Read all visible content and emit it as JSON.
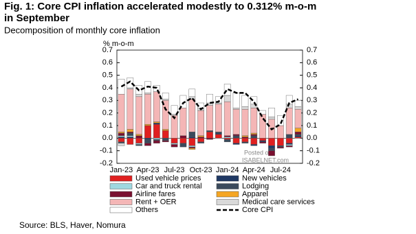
{
  "chart_data": {
    "type": "bar",
    "stacked": true,
    "title": "Fig. 1:  Core CPI inflation accelerated modestly to 0.312% m-o-m in September",
    "subtitle": "Decomposition of monthly core inflation",
    "y_label": "% m-o-m",
    "source": "Source: BLS, Haver, Nomura",
    "watermark": [
      "Posted on",
      "ISABELNET.com"
    ],
    "categories": [
      "Jan-23",
      null,
      null,
      "Apr-23",
      null,
      null,
      "Jul-23",
      null,
      null,
      "Oct-23",
      null,
      null,
      "Jan-24",
      null,
      null,
      "Apr-24",
      null,
      null,
      "Jul-24",
      null,
      null
    ],
    "ylim": [
      -0.2,
      0.7
    ],
    "yticks": [
      -0.2,
      -0.1,
      {
        "value": 0,
        "label": "0.0"
      },
      0.1,
      0.2,
      0.3,
      0.4,
      0.5,
      0.6,
      0.7
    ],
    "y2lim": [
      -0.2,
      0.7
    ],
    "legend": "bottom",
    "series": [
      {
        "name": "Used vehicle prices",
        "color": "#e02020",
        "values": [
          -0.03,
          -0.05,
          -0.04,
          0.1,
          0.11,
          0.06,
          -0.04,
          -0.04,
          -0.06,
          -0.03,
          0.05,
          0.03,
          -0.01,
          -0.04,
          -0.03,
          -0.05,
          -0.02,
          -0.06,
          -0.06,
          -0.04,
          0.01
        ]
      },
      {
        "name": "New vehicles",
        "color": "#1f3864",
        "values": [
          0.01,
          0.01,
          0,
          -0.01,
          0.01,
          0,
          0,
          0,
          0.01,
          0,
          0,
          0.01,
          0,
          -0.01,
          0,
          -0.01,
          -0.01,
          -0.02,
          0,
          -0.01,
          0.01
        ]
      },
      {
        "name": "Car and truck rental",
        "color": "#9fd8e0",
        "values": [
          0.01,
          0.01,
          -0.01,
          0,
          -0.01,
          0,
          -0.01,
          0,
          -0.01,
          0,
          0,
          0,
          0.01,
          0,
          0,
          0,
          0,
          0,
          0,
          -0.01,
          0
        ]
      },
      {
        "name": "Lodging",
        "color": "#3b4a5c",
        "values": [
          -0.01,
          0.02,
          -0.01,
          -0.03,
          -0.01,
          -0.02,
          0,
          -0.03,
          0.04,
          -0.01,
          0.01,
          0.01,
          -0.02,
          0.02,
          -0.01,
          0.02,
          0,
          -0.02,
          -0.01,
          0.03,
          0.01
        ]
      },
      {
        "name": "Airline fares",
        "color": "#7a1030",
        "values": [
          0.02,
          0.01,
          0.02,
          -0.02,
          -0.02,
          -0.01,
          -0.02,
          0.02,
          -0.01,
          0.01,
          -0.01,
          0,
          0.01,
          0.01,
          0.01,
          0.01,
          -0.01,
          -0.04,
          -0.01,
          -0.01,
          0.02
        ]
      },
      {
        "name": "Apparel",
        "color": "#f5a623",
        "values": [
          0.01,
          0.02,
          0.01,
          0.01,
          0.01,
          0.01,
          0,
          0,
          -0.01,
          0.01,
          0,
          0,
          0,
          0,
          0.01,
          0.01,
          0,
          0,
          0,
          0,
          0.03
        ]
      },
      {
        "name": "Rent + OER",
        "color": "#f4b6b6",
        "values": [
          0.3,
          0.32,
          0.3,
          0.24,
          0.24,
          0.23,
          0.18,
          0.22,
          0.26,
          0.2,
          0.2,
          0.22,
          0.27,
          0.2,
          0.21,
          0.2,
          0.19,
          0.15,
          0.1,
          0.21,
          0.15
        ]
      },
      {
        "name": "Medical care services",
        "color": "#d9d9d9",
        "values": [
          -0.02,
          0.01,
          0.02,
          0.01,
          0,
          0.01,
          0.01,
          0,
          0.02,
          0.02,
          0.02,
          0.01,
          0.05,
          0.01,
          0.02,
          0.03,
          0,
          0.02,
          0,
          0.03,
          0.02
        ]
      },
      {
        "name": "Others",
        "color": "#ffffff",
        "values": [
          0.12,
          0.08,
          0.07,
          0.09,
          0.05,
          0.05,
          0.07,
          0.1,
          0.06,
          0.04,
          0.07,
          0.05,
          0.09,
          0.12,
          0.09,
          0.06,
          0.03,
          0.07,
          0.08,
          0.07,
          0.05
        ]
      },
      {
        "name": "Core CPI",
        "type": "line",
        "color": "#000000",
        "values": [
          0.41,
          0.45,
          0.38,
          0.41,
          0.4,
          0.23,
          0.16,
          0.28,
          0.32,
          0.23,
          0.28,
          0.29,
          0.39,
          0.36,
          0.36,
          0.29,
          0.16,
          0.07,
          0.11,
          0.28,
          0.31
        ]
      }
    ]
  }
}
